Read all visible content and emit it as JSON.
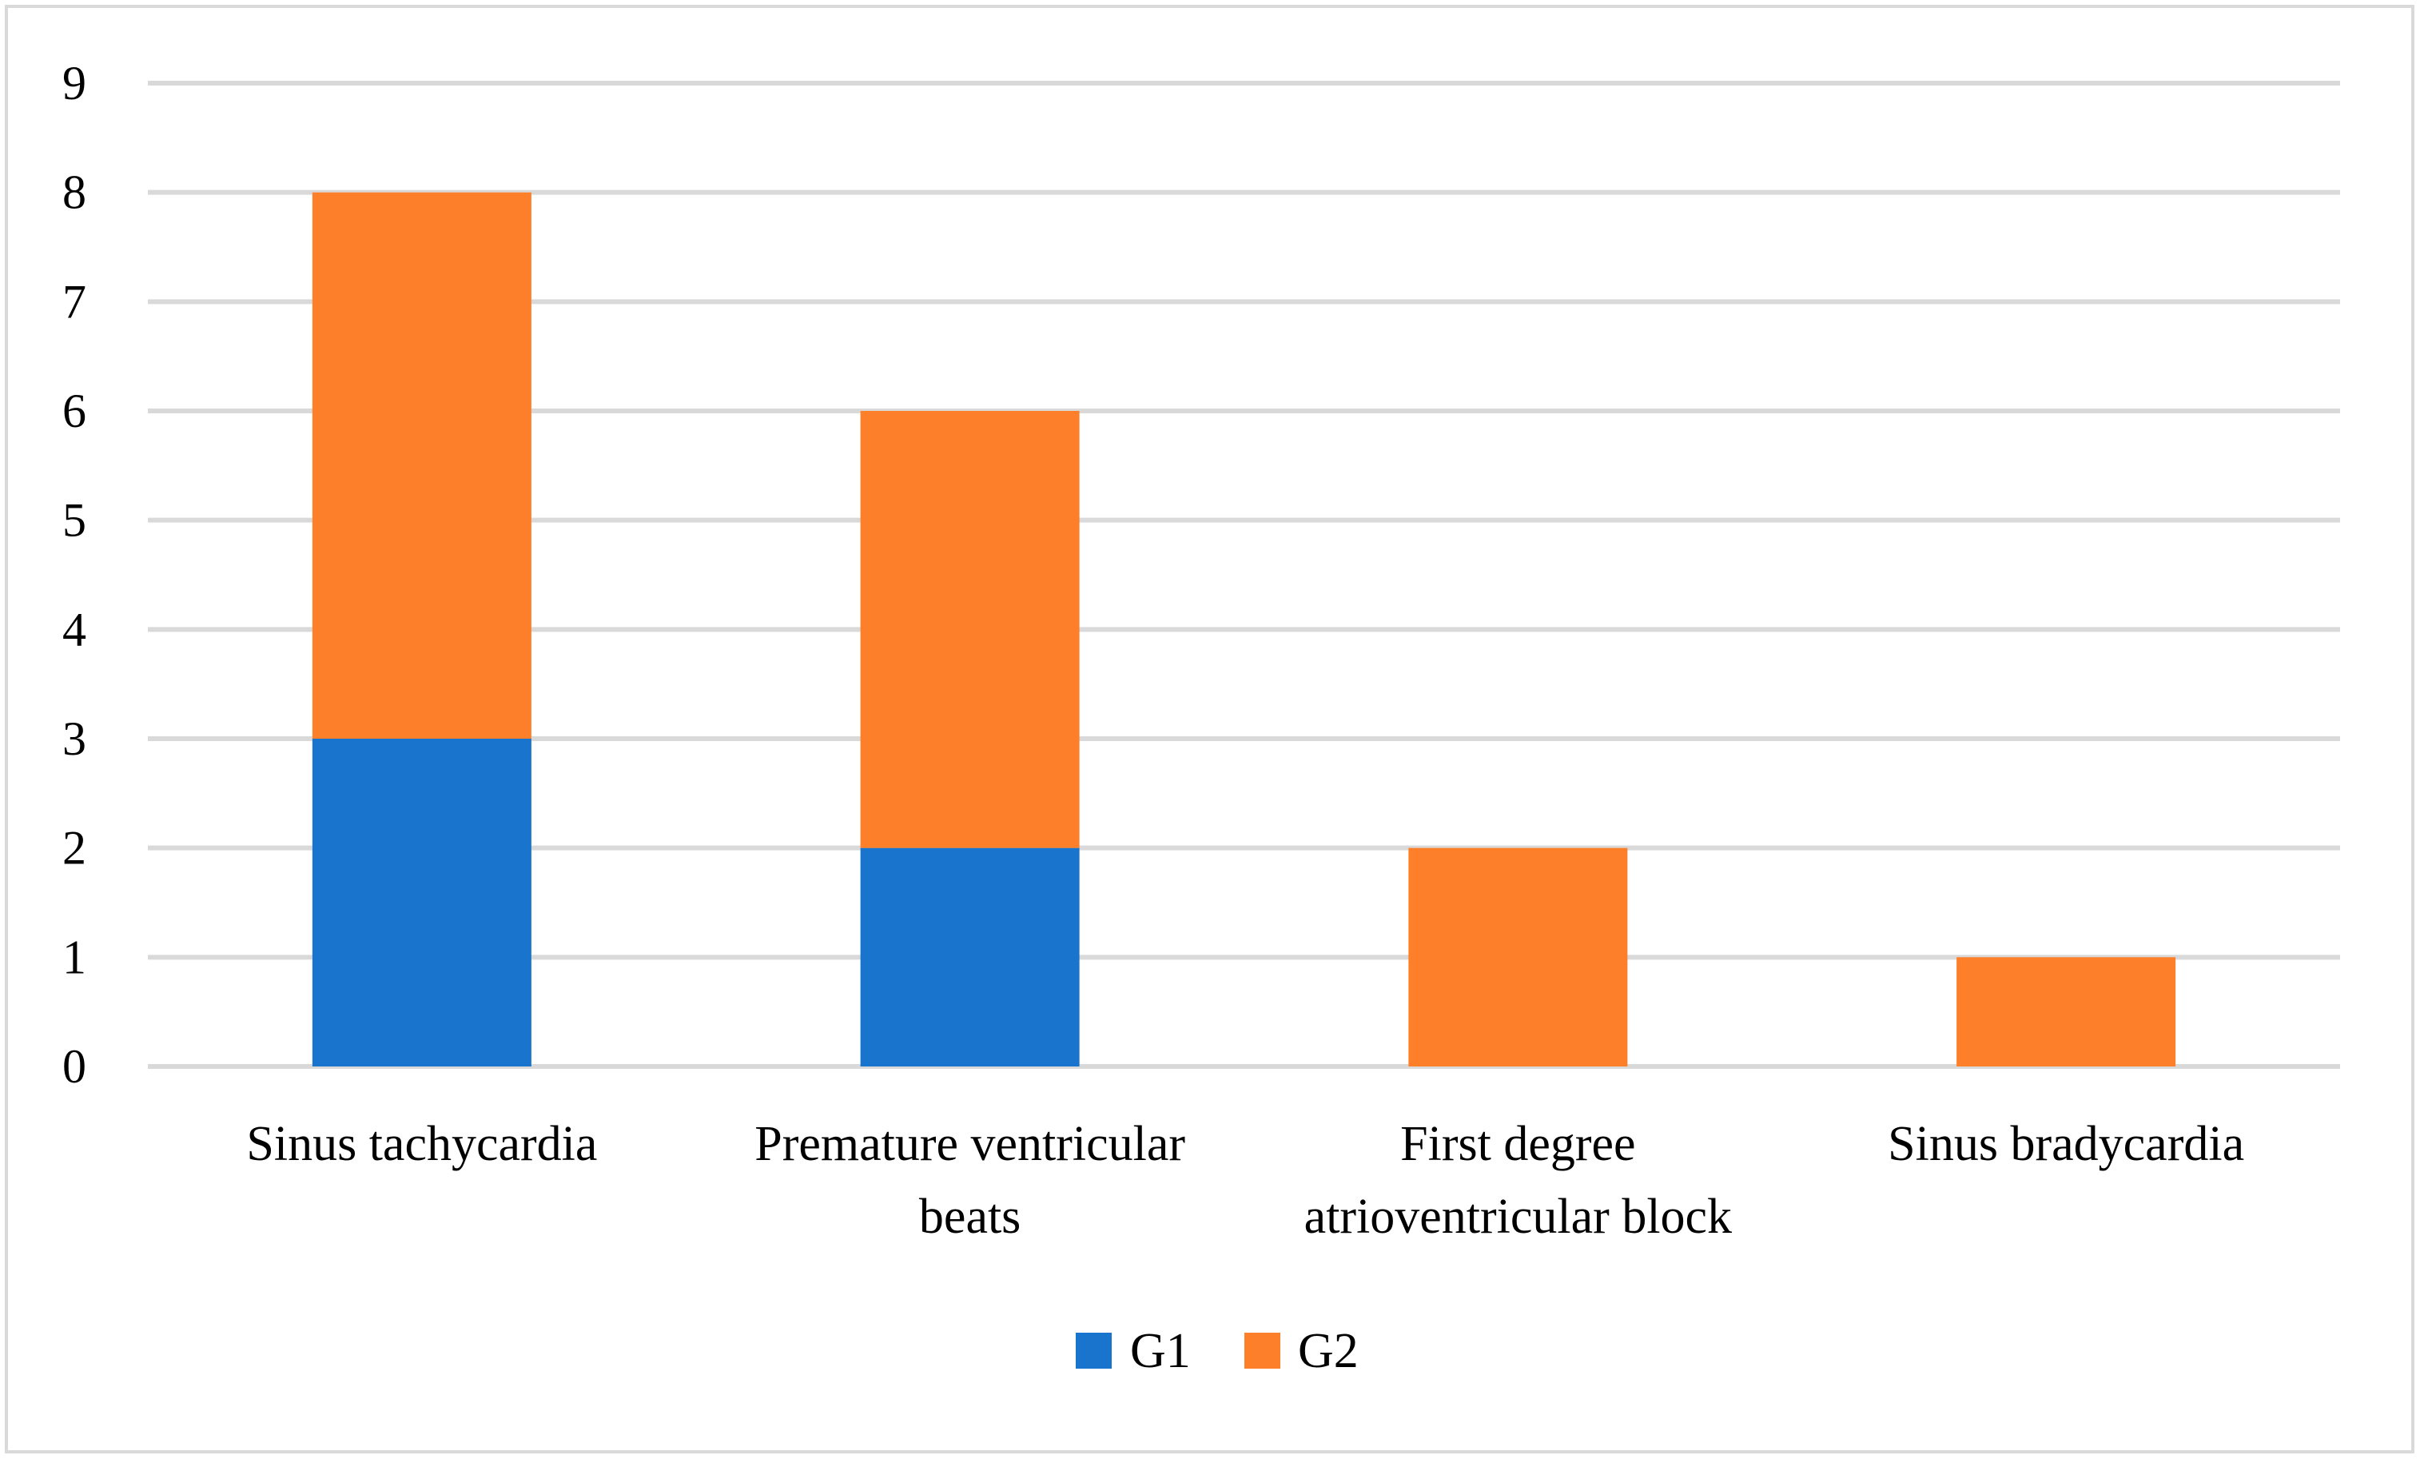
{
  "chart_data": {
    "type": "bar",
    "stacked": true,
    "title": "",
    "xlabel": "",
    "ylabel": "",
    "ylim": [
      0,
      9
    ],
    "yticks": [
      0,
      1,
      2,
      3,
      4,
      5,
      6,
      7,
      8,
      9
    ],
    "grid": true,
    "legend_position": "bottom-center",
    "categories": [
      [
        "Sinus tachycardia"
      ],
      [
        "Premature ventricular",
        "beats"
      ],
      [
        "First degree",
        "atrioventricular block"
      ],
      [
        "Sinus bradycardia"
      ]
    ],
    "series": [
      {
        "name": "G1",
        "color": "#1874CD",
        "values": [
          3,
          2,
          0,
          0
        ]
      },
      {
        "name": "G2",
        "color": "#FE7F29",
        "values": [
          5,
          4,
          2,
          1
        ]
      }
    ],
    "colors": {
      "grid": "#D9D9D9",
      "frame": "#D9D9D9",
      "text": "#000000"
    }
  }
}
